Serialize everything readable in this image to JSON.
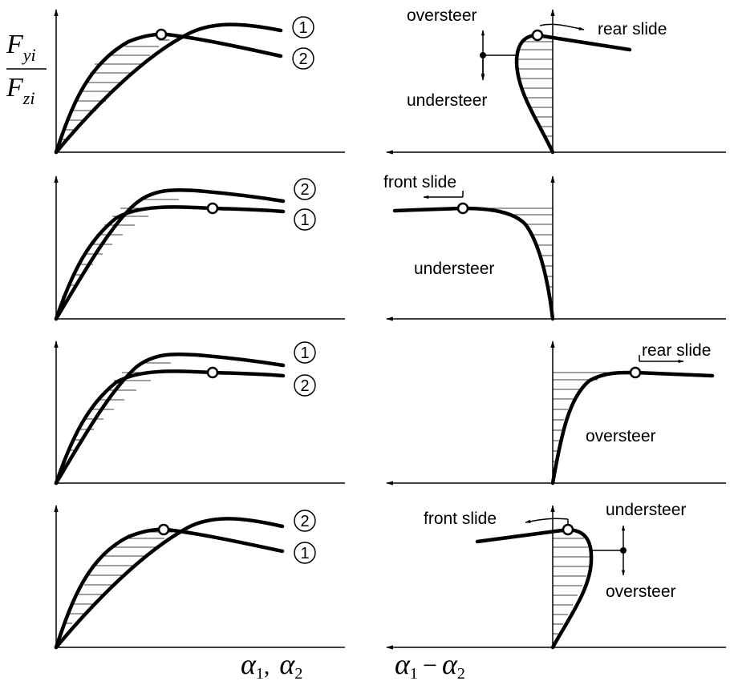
{
  "ylabel": {
    "num_main": "F",
    "num_sub": "yi",
    "den_main": "F",
    "den_sub": "zi"
  },
  "xlabel_left": {
    "a": "α",
    "a_sub": "1",
    "sep": ",",
    "b": "α",
    "b_sub": "2"
  },
  "xlabel_right": {
    "a": "α",
    "a_sub": "1",
    "op": "−",
    "b": "α",
    "b_sub": "2"
  },
  "rows": [
    {
      "left_upper_marker": "1",
      "left_lower_marker": "2",
      "labels": [
        "oversteer",
        "understeer",
        "rear slide"
      ]
    },
    {
      "left_upper_marker": "2",
      "left_lower_marker": "1",
      "labels": [
        "front slide",
        "understeer"
      ]
    },
    {
      "left_upper_marker": "1",
      "left_lower_marker": "2",
      "labels": [
        "rear slide",
        "oversteer"
      ]
    },
    {
      "left_upper_marker": "2",
      "left_lower_marker": "1",
      "labels": [
        "understeer",
        "front slide",
        "oversteer"
      ]
    }
  ]
}
